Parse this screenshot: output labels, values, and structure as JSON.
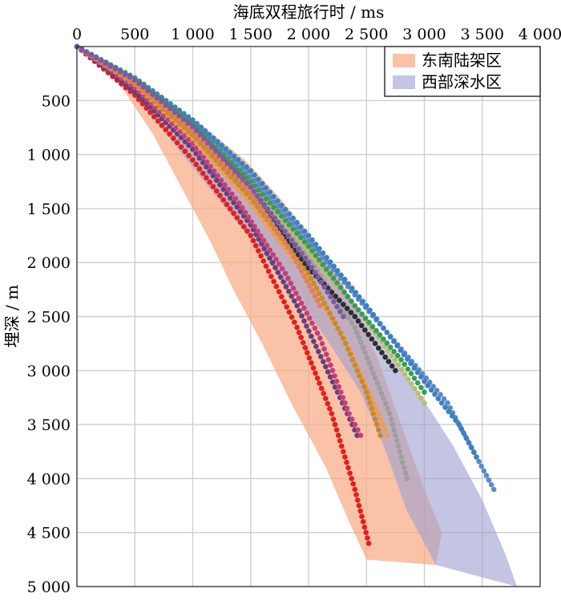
{
  "chart_data": {
    "type": "scatter",
    "title": "",
    "xlabel": "海底双程旅行时 / ms",
    "ylabel": "埋深 / m",
    "xlim": [
      0,
      4000
    ],
    "ylim": [
      0,
      5000
    ],
    "y_inverted": true,
    "x_axis_position": "top",
    "grid": true,
    "legend_position": "top-right",
    "x_ticks": [
      {
        "value": 0,
        "label": "0"
      },
      {
        "value": 500,
        "label": "500"
      },
      {
        "value": 1000,
        "label": "1 000"
      },
      {
        "value": 1500,
        "label": "1 500"
      },
      {
        "value": 2000,
        "label": "2 000"
      },
      {
        "value": 2500,
        "label": "2 500"
      },
      {
        "value": 3000,
        "label": "3 000"
      },
      {
        "value": 3500,
        "label": "3 500"
      },
      {
        "value": 4000,
        "label": "4 000"
      }
    ],
    "y_ticks": [
      {
        "value": 500,
        "label": "500"
      },
      {
        "value": 1000,
        "label": "1 000"
      },
      {
        "value": 1500,
        "label": "1 500"
      },
      {
        "value": 2000,
        "label": "2 000"
      },
      {
        "value": 2500,
        "label": "2 500"
      },
      {
        "value": 3000,
        "label": "3 000"
      },
      {
        "value": 3500,
        "label": "3 500"
      },
      {
        "value": 4000,
        "label": "4 000"
      },
      {
        "value": 4500,
        "label": "4 500"
      },
      {
        "value": 5000,
        "label": "5 000"
      }
    ],
    "regions": [
      {
        "name": "东南陆架区",
        "color": "#f8a882",
        "opacity": 0.7,
        "polygon": [
          [
            0,
            0
          ],
          [
            300,
            150
          ],
          [
            700,
            450
          ],
          [
            1100,
            750
          ],
          [
            1450,
            1050
          ],
          [
            1750,
            1400
          ],
          [
            2050,
            1800
          ],
          [
            2350,
            2300
          ],
          [
            2600,
            2900
          ],
          [
            2800,
            3500
          ],
          [
            3000,
            4100
          ],
          [
            3150,
            4500
          ],
          [
            3100,
            4800
          ],
          [
            2500,
            4750
          ],
          [
            2350,
            4400
          ],
          [
            2150,
            3900
          ],
          [
            1850,
            3300
          ],
          [
            1600,
            2750
          ],
          [
            1350,
            2250
          ],
          [
            1150,
            1800
          ],
          [
            900,
            1300
          ],
          [
            650,
            800
          ],
          [
            400,
            400
          ],
          [
            150,
            120
          ]
        ]
      },
      {
        "name": "西部深水区",
        "color": "#9c9ed0",
        "opacity": 0.6,
        "polygon": [
          [
            0,
            0
          ],
          [
            400,
            250
          ],
          [
            800,
            550
          ],
          [
            1200,
            900
          ],
          [
            1550,
            1250
          ],
          [
            1900,
            1650
          ],
          [
            2250,
            2150
          ],
          [
            2600,
            2700
          ],
          [
            2950,
            3200
          ],
          [
            3250,
            3700
          ],
          [
            3500,
            4200
          ],
          [
            3700,
            4700
          ],
          [
            3800,
            5000
          ],
          [
            3100,
            4800
          ],
          [
            2850,
            4300
          ],
          [
            2650,
            3700
          ],
          [
            2450,
            3200
          ],
          [
            2150,
            2700
          ],
          [
            1850,
            2250
          ],
          [
            1550,
            1850
          ],
          [
            1250,
            1450
          ],
          [
            950,
            1050
          ],
          [
            650,
            650
          ],
          [
            350,
            300
          ],
          [
            100,
            80
          ]
        ]
      }
    ],
    "series": [
      {
        "color": "#e02020",
        "points": [
          [
            0,
            0
          ],
          [
            500,
            450
          ],
          [
            1000,
            1050
          ],
          [
            1500,
            1750
          ],
          [
            1900,
            2600
          ],
          [
            2200,
            3400
          ],
          [
            2400,
            4100
          ],
          [
            2520,
            4600
          ]
        ]
      },
      {
        "color": "#6a3d7a",
        "points": [
          [
            0,
            0
          ],
          [
            500,
            420
          ],
          [
            1000,
            950
          ],
          [
            1500,
            1650
          ],
          [
            1900,
            2400
          ],
          [
            2250,
            3200
          ],
          [
            2420,
            3600
          ]
        ]
      },
      {
        "color": "#c0407a",
        "points": [
          [
            0,
            0
          ],
          [
            500,
            380
          ],
          [
            1000,
            900
          ],
          [
            1400,
            1450
          ],
          [
            1800,
            2100
          ],
          [
            2100,
            2700
          ],
          [
            2350,
            3400
          ],
          [
            2450,
            3600
          ]
        ]
      },
      {
        "color": "#f19c4a",
        "points": [
          [
            0,
            0
          ],
          [
            500,
            350
          ],
          [
            1000,
            850
          ],
          [
            1500,
            1450
          ],
          [
            2000,
            2150
          ],
          [
            2350,
            2800
          ],
          [
            2600,
            3400
          ],
          [
            2680,
            3600
          ]
        ]
      },
      {
        "color": "#c58a30",
        "points": [
          [
            0,
            0
          ],
          [
            500,
            340
          ],
          [
            1000,
            820
          ],
          [
            1500,
            1400
          ],
          [
            2000,
            2100
          ],
          [
            2300,
            2700
          ],
          [
            2500,
            3200
          ],
          [
            2620,
            3600
          ]
        ]
      },
      {
        "color": "#9e9e9e",
        "points": [
          [
            0,
            0
          ],
          [
            500,
            320
          ],
          [
            1000,
            750
          ],
          [
            1500,
            1300
          ],
          [
            2000,
            1950
          ],
          [
            2400,
            2600
          ],
          [
            2700,
            3400
          ],
          [
            2850,
            4000
          ]
        ]
      },
      {
        "color": "#2e2e2e",
        "points": [
          [
            0,
            0
          ],
          [
            500,
            320
          ],
          [
            1000,
            750
          ],
          [
            1500,
            1350
          ],
          [
            2000,
            2050
          ],
          [
            2400,
            2500
          ],
          [
            2750,
            3000
          ]
        ]
      },
      {
        "color": "#b8bf6a",
        "points": [
          [
            0,
            0
          ],
          [
            500,
            300
          ],
          [
            1000,
            700
          ],
          [
            1500,
            1250
          ],
          [
            2000,
            1900
          ],
          [
            2400,
            2400
          ],
          [
            2750,
            2900
          ],
          [
            3000,
            3300
          ]
        ]
      },
      {
        "color": "#5a8bc8",
        "points": [
          [
            0,
            0
          ],
          [
            500,
            300
          ],
          [
            1000,
            700
          ],
          [
            1500,
            1200
          ],
          [
            2000,
            1800
          ],
          [
            2400,
            2300
          ],
          [
            2800,
            2800
          ],
          [
            3200,
            3300
          ],
          [
            3450,
            3800
          ],
          [
            3600,
            4100
          ]
        ]
      },
      {
        "color": "#3f7fbf",
        "points": [
          [
            0,
            0
          ],
          [
            500,
            290
          ],
          [
            1000,
            680
          ],
          [
            1500,
            1150
          ],
          [
            2000,
            1750
          ],
          [
            2500,
            2400
          ],
          [
            3000,
            3100
          ],
          [
            3300,
            3500
          ],
          [
            3450,
            3800
          ]
        ]
      },
      {
        "color": "#3a9a5a",
        "points": [
          [
            0,
            0
          ],
          [
            500,
            300
          ],
          [
            1000,
            720
          ],
          [
            1500,
            1250
          ],
          [
            2000,
            1850
          ],
          [
            2400,
            2400
          ],
          [
            2800,
            2900
          ],
          [
            3000,
            3200
          ]
        ]
      },
      {
        "color": "#e0805a",
        "points": [
          [
            0,
            0
          ],
          [
            500,
            330
          ],
          [
            1000,
            780
          ],
          [
            1500,
            1350
          ],
          [
            1850,
            1900
          ],
          [
            2100,
            2400
          ]
        ]
      },
      {
        "color": "#7a5aa0",
        "points": [
          [
            0,
            0
          ],
          [
            500,
            310
          ],
          [
            1000,
            740
          ],
          [
            1500,
            1300
          ],
          [
            2000,
            2000
          ],
          [
            2300,
            2500
          ]
        ]
      }
    ]
  },
  "legend": {
    "items": [
      {
        "label": "东南陆架区",
        "color": "#f8a882"
      },
      {
        "label": "西部深水区",
        "color": "#9c9ed0"
      }
    ]
  }
}
